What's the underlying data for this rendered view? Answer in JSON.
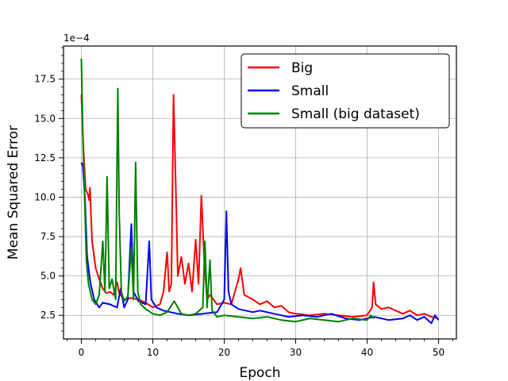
{
  "chart_data": {
    "type": "line",
    "title": "",
    "xlabel": "Epoch",
    "ylabel": "Mean Squared Error",
    "y_offset_label": "1e−4",
    "xlim": [
      -2.5,
      52.5
    ],
    "ylim": [
      1.0,
      19.6
    ],
    "xticks": [
      0,
      10,
      20,
      30,
      40,
      50
    ],
    "xtick_labels": [
      "0",
      "10",
      "20",
      "30",
      "40",
      "50"
    ],
    "yticks": [
      2.5,
      5.0,
      7.5,
      10.0,
      12.5,
      15.0,
      17.5
    ],
    "ytick_labels": [
      "2.5",
      "5.0",
      "7.5",
      "10.0",
      "12.5",
      "15.0",
      "17.5"
    ],
    "grid": true,
    "legend": "top-right",
    "series": [
      {
        "name": "Big",
        "color": "#ff0000",
        "points": [
          [
            0,
            16.5
          ],
          [
            0.3,
            13.0
          ],
          [
            0.6,
            10.5
          ],
          [
            0.9,
            10.2
          ],
          [
            1.1,
            9.8
          ],
          [
            1.2,
            10.6
          ],
          [
            1.5,
            7.2
          ],
          [
            2.0,
            5.5
          ],
          [
            2.5,
            4.8
          ],
          [
            3.0,
            4.2
          ],
          [
            3.5,
            3.9
          ],
          [
            4.0,
            4.0
          ],
          [
            4.5,
            3.8
          ],
          [
            5.0,
            4.6
          ],
          [
            5.3,
            3.9
          ],
          [
            6.0,
            3.5
          ],
          [
            7.0,
            3.6
          ],
          [
            8.0,
            3.5
          ],
          [
            9.0,
            3.3
          ],
          [
            10.0,
            3.0
          ],
          [
            11.0,
            3.2
          ],
          [
            11.5,
            4.0
          ],
          [
            12.0,
            6.5
          ],
          [
            12.3,
            4.0
          ],
          [
            12.6,
            4.5
          ],
          [
            12.9,
            16.5
          ],
          [
            13.2,
            11.0
          ],
          [
            13.5,
            5.0
          ],
          [
            14.0,
            6.2
          ],
          [
            14.5,
            4.5
          ],
          [
            15.0,
            5.8
          ],
          [
            15.5,
            4.0
          ],
          [
            16.0,
            7.3
          ],
          [
            16.4,
            4.5
          ],
          [
            16.8,
            10.1
          ],
          [
            17.2,
            6.0
          ],
          [
            17.6,
            3.5
          ],
          [
            18.0,
            3.8
          ],
          [
            19.0,
            3.2
          ],
          [
            20.0,
            3.3
          ],
          [
            21.0,
            3.2
          ],
          [
            22.0,
            4.8
          ],
          [
            22.3,
            5.5
          ],
          [
            22.8,
            3.8
          ],
          [
            24.0,
            3.5
          ],
          [
            25.0,
            3.2
          ],
          [
            26.0,
            3.4
          ],
          [
            27.0,
            3.0
          ],
          [
            28.0,
            3.1
          ],
          [
            29.0,
            2.7
          ],
          [
            30.0,
            2.6
          ],
          [
            32.0,
            2.5
          ],
          [
            34.0,
            2.6
          ],
          [
            36.0,
            2.5
          ],
          [
            38.0,
            2.4
          ],
          [
            40.0,
            2.5
          ],
          [
            40.7,
            3.0
          ],
          [
            40.9,
            4.6
          ],
          [
            41.2,
            3.2
          ],
          [
            42.0,
            2.9
          ],
          [
            43.0,
            3.0
          ],
          [
            44.0,
            2.8
          ],
          [
            45.0,
            2.6
          ],
          [
            46.0,
            2.8
          ],
          [
            47.0,
            2.5
          ],
          [
            48.0,
            2.6
          ],
          [
            49.0,
            2.4
          ],
          [
            50.0,
            2.3
          ]
        ]
      },
      {
        "name": "Small",
        "color": "#0000ff",
        "points": [
          [
            0,
            12.2
          ],
          [
            0.2,
            12.0
          ],
          [
            0.5,
            10.0
          ],
          [
            0.8,
            6.3
          ],
          [
            1.0,
            5.5
          ],
          [
            1.3,
            4.5
          ],
          [
            1.8,
            3.5
          ],
          [
            2.5,
            3.0
          ],
          [
            3.0,
            3.3
          ],
          [
            4.0,
            3.2
          ],
          [
            5.0,
            3.0
          ],
          [
            5.5,
            4.2
          ],
          [
            6.0,
            3.0
          ],
          [
            6.5,
            3.5
          ],
          [
            7.0,
            8.3
          ],
          [
            7.3,
            4.0
          ],
          [
            8.0,
            3.4
          ],
          [
            9.0,
            3.2
          ],
          [
            9.5,
            7.2
          ],
          [
            9.8,
            3.5
          ],
          [
            10.5,
            3.0
          ],
          [
            11.5,
            2.8
          ],
          [
            12.5,
            2.7
          ],
          [
            13.5,
            2.6
          ],
          [
            15.0,
            2.5
          ],
          [
            17.0,
            2.6
          ],
          [
            19.0,
            2.7
          ],
          [
            20.0,
            3.5
          ],
          [
            20.3,
            9.1
          ],
          [
            20.6,
            4.0
          ],
          [
            21.0,
            3.2
          ],
          [
            22.0,
            2.9
          ],
          [
            23.0,
            2.8
          ],
          [
            24.0,
            2.7
          ],
          [
            25.0,
            2.8
          ],
          [
            27.0,
            2.6
          ],
          [
            29.0,
            2.4
          ],
          [
            31.0,
            2.5
          ],
          [
            33.0,
            2.4
          ],
          [
            35.0,
            2.6
          ],
          [
            37.0,
            2.3
          ],
          [
            39.0,
            2.2
          ],
          [
            41.0,
            2.4
          ],
          [
            43.0,
            2.2
          ],
          [
            45.0,
            2.3
          ],
          [
            46.0,
            2.5
          ],
          [
            47.0,
            2.2
          ],
          [
            48.0,
            2.4
          ],
          [
            49.0,
            2.0
          ],
          [
            49.5,
            2.5
          ],
          [
            50.0,
            2.2
          ]
        ]
      },
      {
        "name": "Small (big dataset)",
        "color": "#008000",
        "points": [
          [
            0,
            18.8
          ],
          [
            0.2,
            14.0
          ],
          [
            0.4,
            11.0
          ],
          [
            0.7,
            6.0
          ],
          [
            1.0,
            4.5
          ],
          [
            1.5,
            3.5
          ],
          [
            2.0,
            3.2
          ],
          [
            2.5,
            3.8
          ],
          [
            3.0,
            7.2
          ],
          [
            3.3,
            4.0
          ],
          [
            3.6,
            11.3
          ],
          [
            3.9,
            4.2
          ],
          [
            4.3,
            4.8
          ],
          [
            4.8,
            3.5
          ],
          [
            5.1,
            16.9
          ],
          [
            5.3,
            9.0
          ],
          [
            5.6,
            4.0
          ],
          [
            6.0,
            3.4
          ],
          [
            6.5,
            3.7
          ],
          [
            7.0,
            6.8
          ],
          [
            7.3,
            3.5
          ],
          [
            7.6,
            12.2
          ],
          [
            7.9,
            4.0
          ],
          [
            8.3,
            3.2
          ],
          [
            9.0,
            2.9
          ],
          [
            10.0,
            2.6
          ],
          [
            11.0,
            2.5
          ],
          [
            12.0,
            2.7
          ],
          [
            13.0,
            3.4
          ],
          [
            14.0,
            2.6
          ],
          [
            15.0,
            2.5
          ],
          [
            16.0,
            2.6
          ],
          [
            17.0,
            3.0
          ],
          [
            17.3,
            7.2
          ],
          [
            17.6,
            3.0
          ],
          [
            18.0,
            6.0
          ],
          [
            18.3,
            2.8
          ],
          [
            19.0,
            2.4
          ],
          [
            20.0,
            2.5
          ],
          [
            22.0,
            2.4
          ],
          [
            24.0,
            2.3
          ],
          [
            26.0,
            2.4
          ],
          [
            28.0,
            2.2
          ],
          [
            30.0,
            2.1
          ],
          [
            32.0,
            2.3
          ],
          [
            34.0,
            2.2
          ],
          [
            36.0,
            2.1
          ],
          [
            38.0,
            2.3
          ],
          [
            40.0,
            2.2
          ],
          [
            40.5,
            2.5
          ],
          [
            41.0,
            2.3
          ]
        ]
      }
    ]
  }
}
